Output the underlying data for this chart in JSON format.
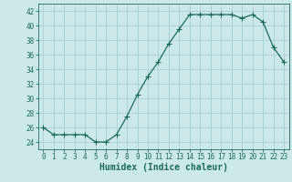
{
  "x": [
    0,
    1,
    2,
    3,
    4,
    5,
    6,
    7,
    8,
    9,
    10,
    11,
    12,
    13,
    14,
    15,
    16,
    17,
    18,
    19,
    20,
    21,
    22,
    23
  ],
  "y": [
    26,
    25,
    25,
    25,
    25,
    24,
    24,
    25,
    27.5,
    30.5,
    33,
    35,
    37.5,
    39.5,
    41.5,
    41.5,
    41.5,
    41.5,
    41.5,
    41,
    41.5,
    40.5,
    37,
    35
  ],
  "line_color": "#1a6b5a",
  "bg_color": "#cce8e8",
  "grid_color": "#aacece",
  "xlabel": "Humidex (Indice chaleur)",
  "ylabel": "",
  "ylim": [
    23,
    43
  ],
  "xlim": [
    -0.5,
    23.5
  ],
  "yticks": [
    24,
    26,
    28,
    30,
    32,
    34,
    36,
    38,
    40,
    42
  ],
  "xticks": [
    0,
    1,
    2,
    3,
    4,
    5,
    6,
    7,
    8,
    9,
    10,
    11,
    12,
    13,
    14,
    15,
    16,
    17,
    18,
    19,
    20,
    21,
    22,
    23
  ],
  "marker": "+",
  "markersize": 4,
  "markeredgewidth": 0.8,
  "linewidth": 0.9,
  "xlabel_fontsize": 7,
  "tick_fontsize": 5.5
}
